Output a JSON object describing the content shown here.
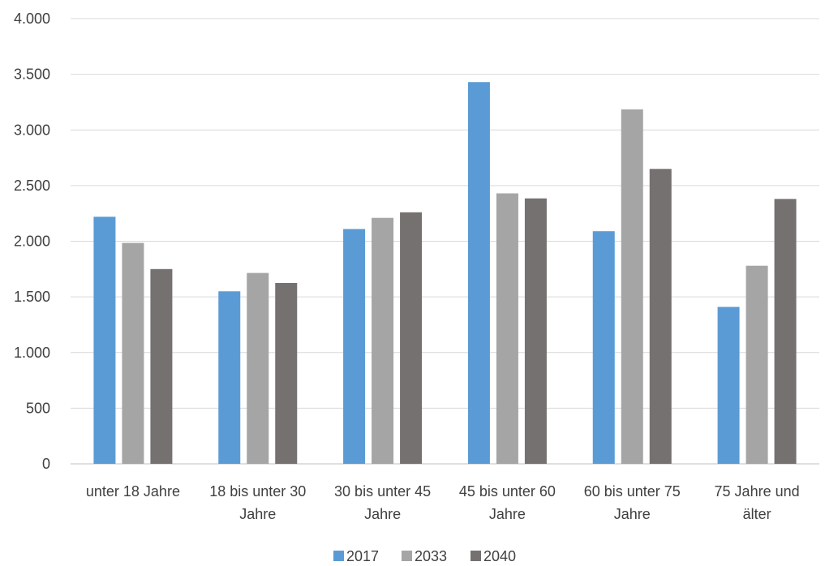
{
  "chart_data": {
    "type": "bar",
    "title": "",
    "xlabel": "",
    "ylabel": "",
    "categories": [
      [
        "unter 18 Jahre"
      ],
      [
        "18 bis unter 30",
        "Jahre"
      ],
      [
        "30 bis unter 45",
        "Jahre"
      ],
      [
        "45 bis unter 60",
        "Jahre"
      ],
      [
        "60 bis unter 75",
        "Jahre"
      ],
      [
        "75 Jahre und",
        "älter"
      ]
    ],
    "series": [
      {
        "name": "2017",
        "color": "#5B9BD5",
        "values": [
          2220,
          1550,
          2110,
          3430,
          2090,
          1410
        ]
      },
      {
        "name": "2033",
        "color": "#A5A5A5",
        "values": [
          1985,
          1715,
          2210,
          2430,
          3185,
          1780
        ]
      },
      {
        "name": "2040",
        "color": "#767171",
        "values": [
          1750,
          1625,
          2260,
          2385,
          2650,
          2380
        ]
      }
    ],
    "ylim": [
      0,
      4000
    ],
    "yticks": [
      0,
      500,
      1000,
      1500,
      2000,
      2500,
      3000,
      3500,
      4000
    ],
    "ytick_labels": [
      "0",
      "500",
      "1.000",
      "1.500",
      "2.000",
      "2.500",
      "3.000",
      "3.500",
      "4.000"
    ],
    "grid": true,
    "legend_position": "bottom"
  }
}
